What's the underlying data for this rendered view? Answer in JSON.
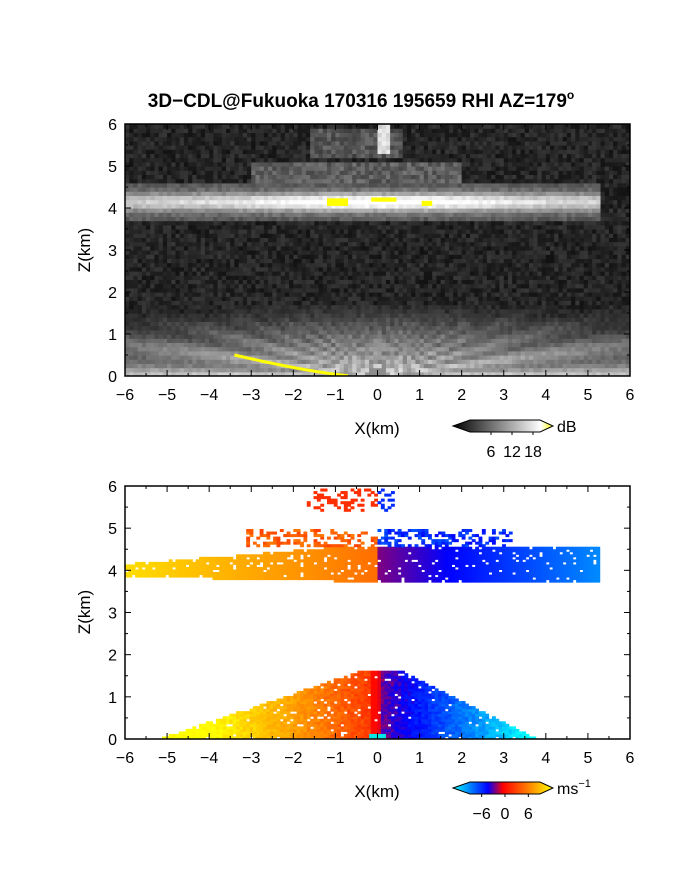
{
  "figure": {
    "title": "3D−CDL@Fukuoka 170316 195659 RHI AZ=179",
    "title_superscript": "o"
  },
  "chart_data": [
    {
      "type": "heatmap",
      "panel": "reflectivity",
      "xlabel": "X(km)",
      "ylabel": "Z(km)",
      "xlim": [
        -6,
        6
      ],
      "ylim": [
        0,
        6
      ],
      "x_ticks": [
        "−6",
        "−5",
        "−4",
        "−3",
        "−2",
        "−1",
        "0",
        "1",
        "2",
        "3",
        "4",
        "5",
        "6"
      ],
      "y_ticks": [
        "0",
        "1",
        "2",
        "3",
        "4",
        "5",
        "6"
      ],
      "colorbar": {
        "unit": "dB",
        "range": [
          0,
          20
        ],
        "tick_values": [
          6,
          12,
          18
        ],
        "tick_labels": [
          "6",
          "12",
          "18"
        ],
        "colors": [
          "#000000",
          "#ffffff",
          "#ffff00"
        ]
      },
      "features": [
        {
          "layer": "cloud layer",
          "x_range": [
            -6,
            5.2
          ],
          "z_range": [
            3.7,
            4.6
          ]
        },
        {
          "layer": "upper echo",
          "x_range": [
            -1.5,
            0.5
          ],
          "z_range": [
            5.0,
            6.0
          ]
        },
        {
          "layer": "lower echo fan",
          "x_range": [
            -6,
            6
          ],
          "z_range": [
            0,
            1.7
          ]
        }
      ]
    },
    {
      "type": "heatmap",
      "panel": "doppler_velocity",
      "xlabel": "X(km)",
      "ylabel": "Z(km)",
      "xlim": [
        -6,
        6
      ],
      "ylim": [
        0,
        6
      ],
      "x_ticks": [
        "−6",
        "−5",
        "−4",
        "−3",
        "−2",
        "−1",
        "0",
        "1",
        "2",
        "3",
        "4",
        "5",
        "6"
      ],
      "y_ticks": [
        "0",
        "1",
        "2",
        "3",
        "4",
        "5",
        "6"
      ],
      "colorbar": {
        "unit": "ms",
        "unit_superscript": "−1",
        "range": [
          -9,
          9
        ],
        "tick_values": [
          -6,
          0,
          6
        ],
        "tick_labels": [
          "−6",
          "0",
          "6"
        ],
        "colors": [
          "#00ffff",
          "#0000ff",
          "#ff0000",
          "#ffff00"
        ]
      },
      "features": [
        {
          "layer": "cloud layer",
          "x_range": [
            -6,
            5.3
          ],
          "z_range": [
            3.6,
            5.0
          ]
        },
        {
          "layer": "boundary layer",
          "x_range": [
            -5.2,
            4.0
          ],
          "z_range": [
            0,
            1.6
          ]
        }
      ]
    }
  ]
}
